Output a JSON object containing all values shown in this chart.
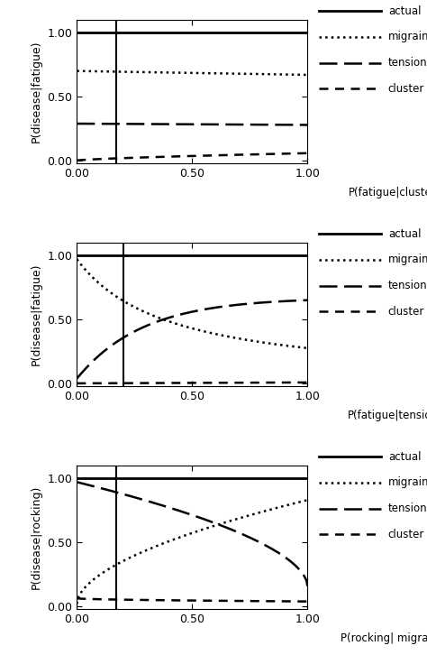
{
  "panels": [
    {
      "ylabel": "P(disease|fatigue)",
      "xlabel": "P(fatigue|cluster)",
      "vertical_line_x": 0.17,
      "actual_line_at": 1.0
    },
    {
      "ylabel": "P(disease|fatigue)",
      "xlabel": "P(fatigue|tension)",
      "vertical_line_x": 0.2,
      "actual_line_at": 1.0
    },
    {
      "ylabel": "P(disease|rocking)",
      "xlabel": "P(rocking| migraine)",
      "vertical_line_x": 0.17,
      "actual_line_at": 1.0
    }
  ],
  "xlim": [
    0.0,
    1.0
  ],
  "ylim": [
    -0.02,
    1.1
  ],
  "xticks": [
    0.0,
    0.5,
    1.0
  ],
  "yticks": [
    0.0,
    0.5,
    1.0
  ],
  "tick_labels_x": [
    "0.00",
    "0.50",
    "1.00"
  ],
  "tick_labels_y": [
    "0.00",
    "0.50",
    "1.00"
  ],
  "bg_color": "#ffffff",
  "figsize": [
    4.74,
    7.26
  ],
  "dpi": 100
}
